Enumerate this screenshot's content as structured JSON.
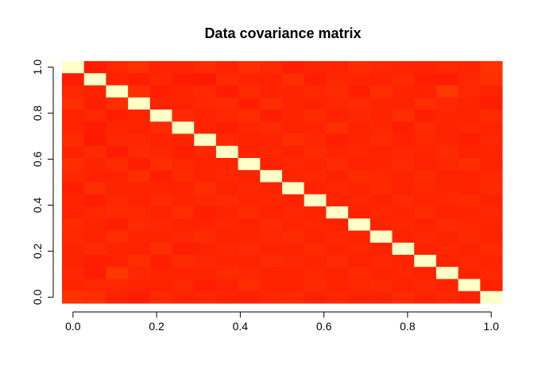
{
  "chart_data": {
    "type": "heatmap",
    "title": "Data covariance matrix",
    "xlabel": "",
    "ylabel": "",
    "xlim": [
      0,
      1
    ],
    "ylim": [
      0,
      1
    ],
    "x_ticks": [
      0.0,
      0.2,
      0.4,
      0.6,
      0.8,
      1.0
    ],
    "x_tick_labels": [
      "0.0",
      "0.2",
      "0.4",
      "0.6",
      "0.8",
      "1.0"
    ],
    "y_ticks": [
      0.0,
      0.2,
      0.4,
      0.6,
      0.8,
      1.0
    ],
    "y_tick_labels": [
      "0.0",
      "0.2",
      "0.4",
      "0.6",
      "0.8",
      "1.0"
    ],
    "grid": false,
    "colormap": "heat.colors",
    "size": 20,
    "values": [
      [
        1.0,
        0.08,
        0.12,
        0.15,
        0.1,
        0.11,
        0.13,
        0.1,
        0.14,
        0.12,
        0.09,
        0.11,
        0.1,
        0.13,
        0.12,
        0.11,
        0.1,
        0.12,
        0.11,
        0.16
      ],
      [
        0.08,
        1.0,
        0.1,
        0.09,
        0.12,
        0.08,
        0.07,
        0.13,
        0.11,
        0.1,
        0.14,
        0.09,
        0.12,
        0.11,
        0.1,
        0.13,
        0.09,
        0.08,
        0.12,
        0.15
      ],
      [
        0.12,
        0.1,
        1.0,
        0.14,
        0.09,
        0.11,
        0.12,
        0.08,
        0.13,
        0.1,
        0.11,
        0.12,
        0.13,
        0.09,
        0.14,
        0.11,
        0.1,
        0.18,
        0.12,
        0.1
      ],
      [
        0.15,
        0.09,
        0.14,
        1.0,
        0.11,
        0.1,
        0.12,
        0.13,
        0.09,
        0.14,
        0.11,
        0.1,
        0.12,
        0.13,
        0.11,
        0.1,
        0.14,
        0.12,
        0.11,
        0.09
      ],
      [
        0.1,
        0.12,
        0.09,
        0.11,
        1.0,
        0.13,
        0.1,
        0.12,
        0.14,
        0.09,
        0.11,
        0.13,
        0.1,
        0.12,
        0.11,
        0.14,
        0.09,
        0.11,
        0.1,
        0.13
      ],
      [
        0.11,
        0.08,
        0.11,
        0.1,
        0.13,
        1.0,
        0.11,
        0.09,
        0.12,
        0.13,
        0.1,
        0.11,
        0.14,
        0.1,
        0.12,
        0.09,
        0.13,
        0.1,
        0.12,
        0.11
      ],
      [
        0.13,
        0.07,
        0.12,
        0.12,
        0.1,
        0.11,
        1.0,
        0.12,
        0.1,
        0.11,
        0.14,
        0.12,
        0.09,
        0.11,
        0.13,
        0.1,
        0.12,
        0.11,
        0.09,
        0.12
      ],
      [
        0.1,
        0.13,
        0.08,
        0.13,
        0.12,
        0.09,
        0.12,
        1.0,
        0.11,
        0.12,
        0.1,
        0.13,
        0.11,
        0.12,
        0.1,
        0.12,
        0.11,
        0.13,
        0.1,
        0.11
      ],
      [
        0.14,
        0.11,
        0.13,
        0.09,
        0.14,
        0.12,
        0.1,
        0.11,
        1.0,
        0.1,
        0.12,
        0.11,
        0.13,
        0.1,
        0.11,
        0.13,
        0.1,
        0.12,
        0.14,
        0.1
      ],
      [
        0.12,
        0.1,
        0.1,
        0.14,
        0.09,
        0.13,
        0.11,
        0.12,
        0.1,
        1.0,
        0.11,
        0.12,
        0.1,
        0.13,
        0.12,
        0.11,
        0.13,
        0.1,
        0.11,
        0.12
      ],
      [
        0.09,
        0.14,
        0.11,
        0.11,
        0.11,
        0.1,
        0.14,
        0.1,
        0.12,
        0.11,
        1.0,
        0.1,
        0.12,
        0.11,
        0.13,
        0.1,
        0.12,
        0.11,
        0.1,
        0.13
      ],
      [
        0.11,
        0.09,
        0.12,
        0.1,
        0.13,
        0.11,
        0.12,
        0.13,
        0.11,
        0.12,
        0.1,
        1.0,
        0.11,
        0.12,
        0.1,
        0.13,
        0.11,
        0.12,
        0.13,
        0.1
      ],
      [
        0.1,
        0.12,
        0.13,
        0.12,
        0.1,
        0.14,
        0.09,
        0.11,
        0.13,
        0.1,
        0.12,
        0.11,
        1.0,
        0.1,
        0.12,
        0.11,
        0.13,
        0.1,
        0.11,
        0.12
      ],
      [
        0.13,
        0.11,
        0.09,
        0.13,
        0.12,
        0.1,
        0.11,
        0.12,
        0.1,
        0.13,
        0.11,
        0.12,
        0.1,
        1.0,
        0.11,
        0.12,
        0.1,
        0.13,
        0.12,
        0.11
      ],
      [
        0.12,
        0.1,
        0.14,
        0.11,
        0.11,
        0.12,
        0.13,
        0.1,
        0.11,
        0.12,
        0.13,
        0.1,
        0.12,
        0.11,
        1.0,
        0.1,
        0.12,
        0.11,
        0.13,
        0.1
      ],
      [
        0.11,
        0.13,
        0.11,
        0.1,
        0.14,
        0.09,
        0.1,
        0.12,
        0.13,
        0.11,
        0.1,
        0.13,
        0.11,
        0.12,
        0.1,
        1.0,
        0.11,
        0.12,
        0.1,
        0.13
      ],
      [
        0.1,
        0.09,
        0.1,
        0.14,
        0.09,
        0.13,
        0.12,
        0.11,
        0.1,
        0.13,
        0.12,
        0.11,
        0.13,
        0.1,
        0.12,
        0.11,
        1.0,
        0.1,
        0.12,
        0.11
      ],
      [
        0.12,
        0.08,
        0.18,
        0.12,
        0.11,
        0.1,
        0.11,
        0.13,
        0.12,
        0.1,
        0.11,
        0.12,
        0.1,
        0.13,
        0.11,
        0.12,
        0.1,
        1.0,
        0.11,
        0.12
      ],
      [
        0.11,
        0.12,
        0.12,
        0.11,
        0.1,
        0.12,
        0.09,
        0.1,
        0.14,
        0.11,
        0.1,
        0.13,
        0.11,
        0.12,
        0.13,
        0.1,
        0.12,
        0.11,
        1.0,
        0.1
      ],
      [
        0.16,
        0.15,
        0.1,
        0.09,
        0.13,
        0.11,
        0.12,
        0.11,
        0.1,
        0.12,
        0.13,
        0.1,
        0.12,
        0.11,
        0.1,
        0.13,
        0.11,
        0.12,
        0.1,
        1.0
      ]
    ]
  }
}
